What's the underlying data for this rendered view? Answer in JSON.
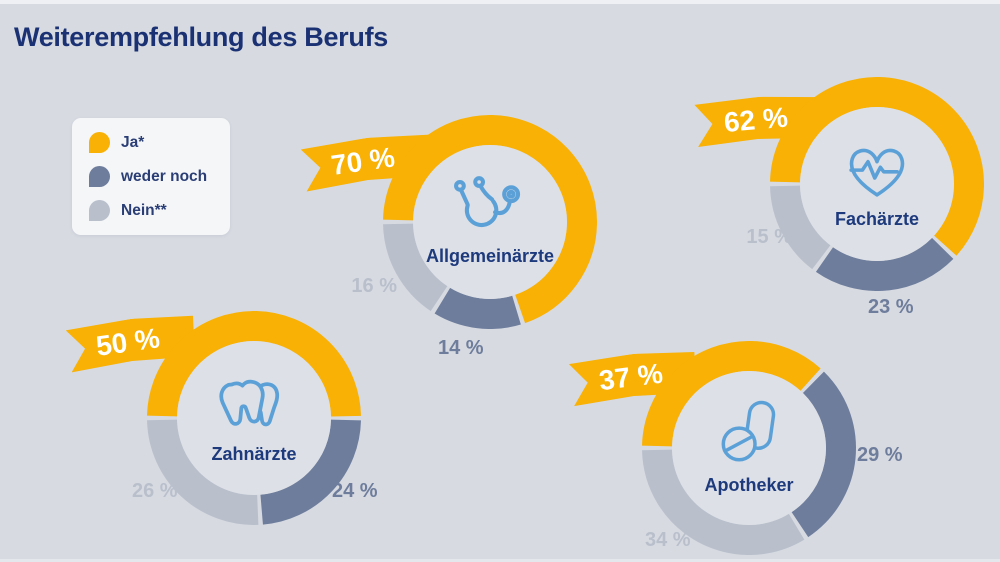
{
  "page": {
    "background": "#d7dae1",
    "top_strip_color": "#eef0f4"
  },
  "chart_data": {
    "type": "pie",
    "variant": "donut-multiples",
    "title": "Weiterempfehlung des Berufs",
    "title_color": "#1a3173",
    "start_angle_from_top_deg": 270,
    "direction": "clockwise",
    "grid": false,
    "legend": {
      "position": "top-left",
      "items": [
        {
          "key": "ja",
          "label": "Ja*",
          "color": "#f8b104"
        },
        {
          "key": "weder_noch",
          "label": "weder noch",
          "color": "#6e7d9c"
        },
        {
          "key": "nein",
          "label": "Nein**",
          "color": "#b9c0cc"
        }
      ]
    },
    "accent": {
      "icon_color": "#5ba1d8",
      "inner_label_color": "#1d3a7d",
      "ribbon_color": "#f8b104",
      "ribbon_text_color": "#ffffff"
    },
    "charts": [
      {
        "id": "allgemeinaerzte",
        "label": "Allgemeinärzte",
        "icon": "stethoscope-icon",
        "highlight": {
          "key": "ja",
          "value": 70,
          "display": "70 %"
        },
        "segments": [
          {
            "key": "ja",
            "value": 70,
            "display": "70 %",
            "color": "#f8b104"
          },
          {
            "key": "weder_noch",
            "value": 14,
            "display": "14 %",
            "color": "#6e7d9c"
          },
          {
            "key": "nein",
            "value": 16,
            "display": "16 %",
            "color": "#b9c0cc"
          }
        ]
      },
      {
        "id": "fachaerzte",
        "label": "Fachärzte",
        "icon": "heart-pulse-icon",
        "highlight": {
          "key": "ja",
          "value": 62,
          "display": "62 %"
        },
        "segments": [
          {
            "key": "ja",
            "value": 62,
            "display": "62 %",
            "color": "#f8b104"
          },
          {
            "key": "weder_noch",
            "value": 23,
            "display": "23 %",
            "color": "#6e7d9c"
          },
          {
            "key": "nein",
            "value": 15,
            "display": "15 %",
            "color": "#b9c0cc"
          }
        ]
      },
      {
        "id": "zahnaerzte",
        "label": "Zahnärzte",
        "icon": "tooth-icon",
        "highlight": {
          "key": "ja",
          "value": 50,
          "display": "50 %"
        },
        "segments": [
          {
            "key": "ja",
            "value": 50,
            "display": "50 %",
            "color": "#f8b104"
          },
          {
            "key": "weder_noch",
            "value": 24,
            "display": "24 %",
            "color": "#6e7d9c"
          },
          {
            "key": "nein",
            "value": 26,
            "display": "26 %",
            "color": "#b9c0cc"
          }
        ]
      },
      {
        "id": "apotheker",
        "label": "Apotheker",
        "icon": "pills-icon",
        "highlight": {
          "key": "ja",
          "value": 37,
          "display": "37 %"
        },
        "segments": [
          {
            "key": "ja",
            "value": 37,
            "display": "37 %",
            "color": "#f8b104"
          },
          {
            "key": "weder_noch",
            "value": 29,
            "display": "29 %",
            "color": "#6e7d9c"
          },
          {
            "key": "nein",
            "value": 34,
            "display": "34 %",
            "color": "#b9c0cc"
          }
        ]
      }
    ]
  }
}
